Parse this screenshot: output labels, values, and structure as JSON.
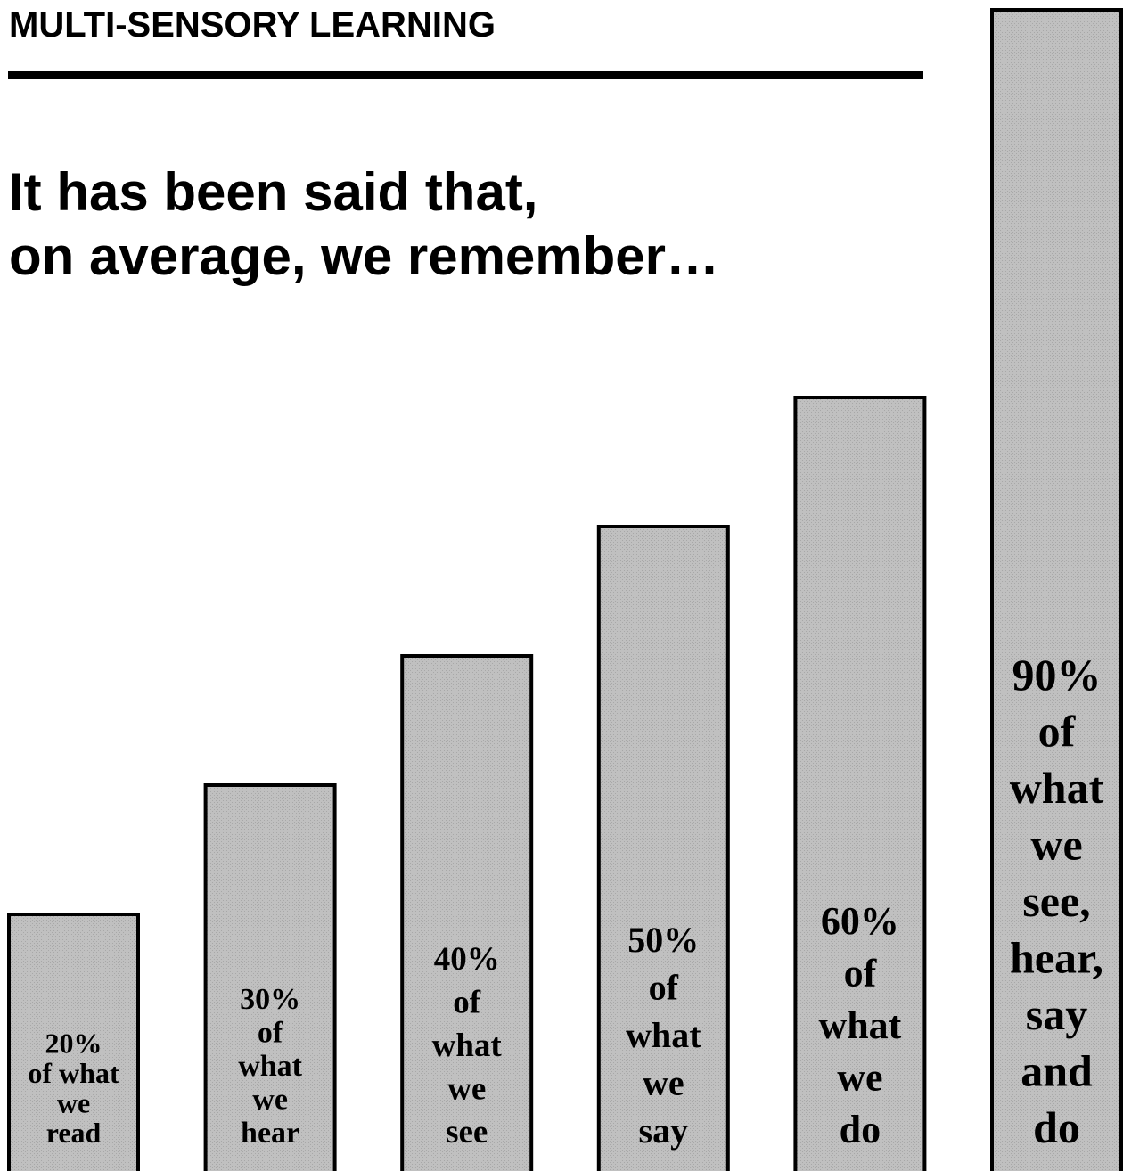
{
  "header": {
    "title": "MULTI-SENSORY LEARNING"
  },
  "intro": {
    "line1": "It has been said that,",
    "line2": "on average, we remember…"
  },
  "colors": {
    "bar_fill": "#c0c0c0",
    "bar_pattern": "#a8a8a8",
    "bar_stroke": "#000000",
    "text": "#000000"
  },
  "chart_data": {
    "type": "bar",
    "categories": [
      "read",
      "hear",
      "see",
      "say",
      "do",
      "see, hear, say and do"
    ],
    "values": [
      20,
      30,
      40,
      50,
      60,
      90
    ],
    "ylim": [
      0,
      90
    ],
    "grid": false,
    "labels": [
      [
        "20%",
        "of what",
        "we",
        "read"
      ],
      [
        "30%",
        "of",
        "what",
        "we",
        "hear"
      ],
      [
        "40%",
        "of",
        "what",
        "we",
        "see"
      ],
      [
        "50%",
        "of",
        "what",
        "we",
        "say"
      ],
      [
        "60%",
        "of",
        "what",
        "we",
        "do"
      ],
      [
        "90%",
        "of",
        "what",
        "we",
        "see,",
        "hear,",
        "say",
        "and",
        "do"
      ]
    ]
  }
}
